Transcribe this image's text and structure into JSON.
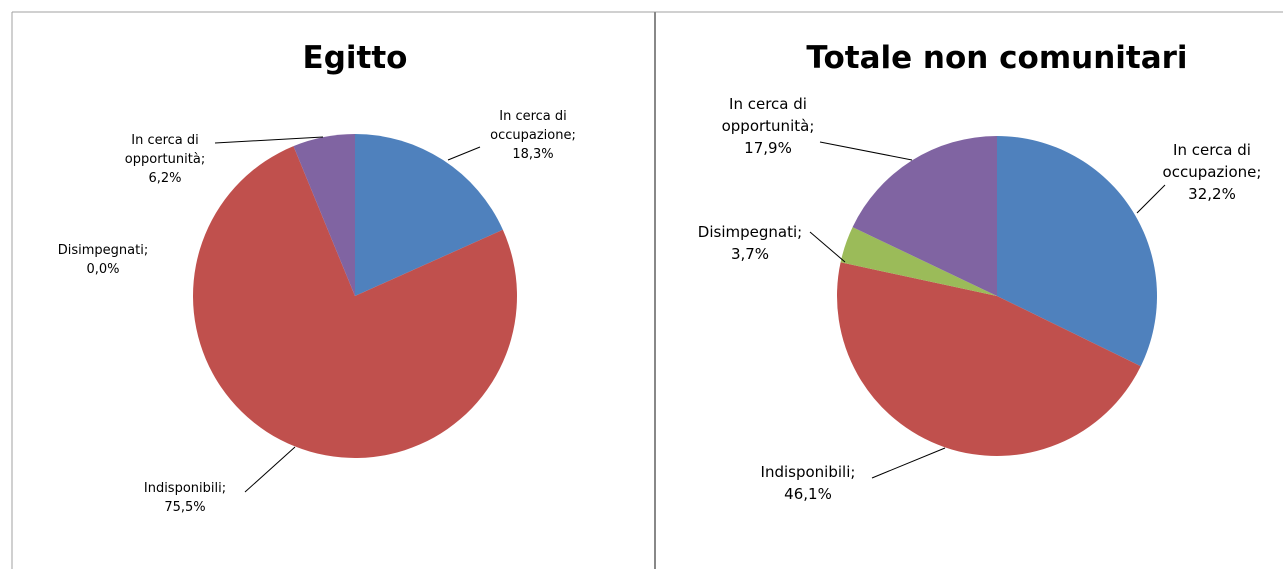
{
  "chart_data": [
    {
      "type": "pie",
      "title": "Egitto",
      "label_separator": ";",
      "categories": [
        "In cerca di occupazione",
        "Indisponibili",
        "Disimpegnati",
        "In cerca di opportunità"
      ],
      "values": [
        18.3,
        75.5,
        0.0,
        6.2
      ],
      "value_labels": [
        "18,3%",
        "75,5%",
        "0,0%",
        "6,2%"
      ],
      "colors": [
        "#4f81bd",
        "#c0504d",
        "#9bbb59",
        "#8064a2"
      ]
    },
    {
      "type": "pie",
      "title": "Totale non comunitari",
      "label_separator": ";",
      "categories": [
        "In cerca di occupazione",
        "Indisponibili",
        "Disimpegnati",
        "In cerca di opportunità"
      ],
      "values": [
        32.2,
        46.1,
        3.7,
        17.9
      ],
      "value_labels": [
        "32,2%",
        "46,1%",
        "3,7%",
        "17,9%"
      ],
      "colors": [
        "#4f81bd",
        "#c0504d",
        "#9bbb59",
        "#8064a2"
      ]
    }
  ]
}
